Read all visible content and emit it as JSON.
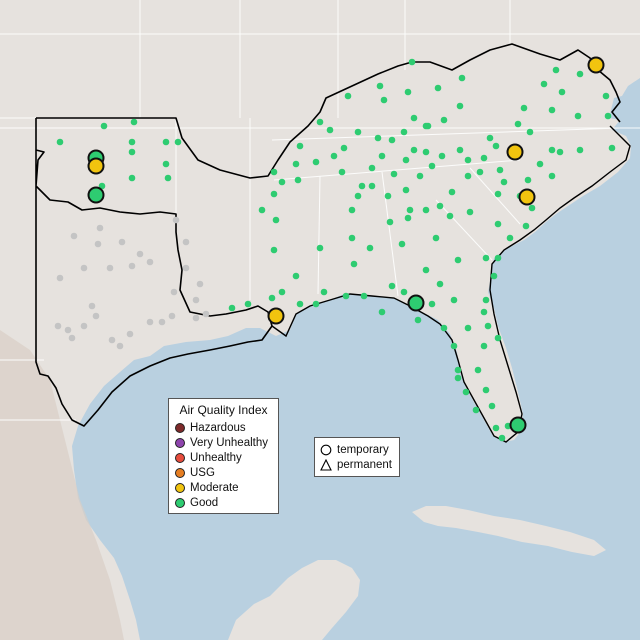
{
  "legend": {
    "title": "Air Quality Index",
    "categories": [
      {
        "label": "Hazardous",
        "color": "#7e2a2a"
      },
      {
        "label": "Very Unhealthy",
        "color": "#8e44ad"
      },
      {
        "label": "Unhealthy",
        "color": "#e74c3c"
      },
      {
        "label": "USG",
        "color": "#e67e22"
      },
      {
        "label": "Moderate",
        "color": "#f1c40f"
      },
      {
        "label": "Good",
        "color": "#2ecc71"
      }
    ]
  },
  "shape_legend": {
    "items": [
      {
        "label": "temporary",
        "icon": "circle-icon"
      },
      {
        "label": "permanent",
        "icon": "triangle-icon"
      }
    ]
  },
  "colors": {
    "ocean": "#b9d0e0",
    "land": "#e6e2de",
    "mountain": "#d8cfc6",
    "boundary": "#000000",
    "inactive_monitor": "#c4c4c4"
  }
}
